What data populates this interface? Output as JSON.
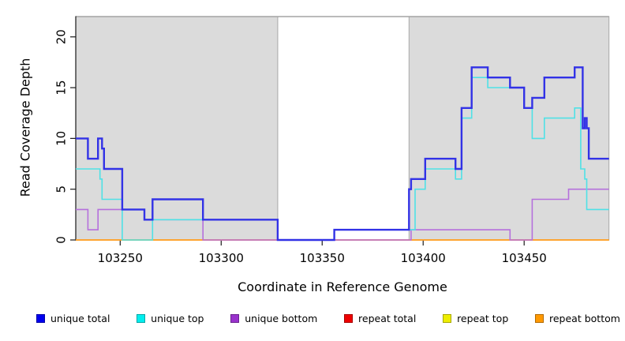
{
  "figure": {
    "xlabel": "Coordinate in Reference Genome",
    "ylabel": "Read Coverage Depth"
  },
  "chart_data": {
    "type": "line",
    "subtype": "step-after",
    "title": "",
    "xlabel": "Coordinate in Reference Genome",
    "ylabel": "Read Coverage Depth",
    "xlim": [
      103228,
      103492
    ],
    "ylim": [
      0,
      22
    ],
    "x_ticks": [
      103250,
      103300,
      103350,
      103400,
      103450
    ],
    "y_ticks": [
      0,
      5,
      10,
      15,
      20
    ],
    "grid": false,
    "legend_position": "bottom",
    "shaded_color": "#dbdbdb",
    "shaded_border_color": "#a8a8a8",
    "background_shaded_regions": [
      [
        103228,
        103328
      ],
      [
        103393,
        103492
      ]
    ],
    "white_gap_region": [
      103328,
      103393
    ],
    "draw_order": [
      "repeat total",
      "repeat top",
      "repeat bottom",
      "unique bottom",
      "unique top",
      "unique total"
    ],
    "series": [
      {
        "name": "unique total",
        "legend_color": "#0000ee",
        "line_color": "#3232e6",
        "line_width": 2.4,
        "steps": [
          [
            103228,
            10
          ],
          [
            103234,
            8
          ],
          [
            103239,
            10
          ],
          [
            103241,
            9
          ],
          [
            103242,
            7
          ],
          [
            103251,
            3
          ],
          [
            103262,
            2
          ],
          [
            103266,
            4
          ],
          [
            103291,
            2
          ],
          [
            103328,
            0
          ],
          [
            103356,
            1
          ],
          [
            103393,
            5
          ],
          [
            103394,
            6
          ],
          [
            103401,
            8
          ],
          [
            103416,
            7
          ],
          [
            103419,
            13
          ],
          [
            103424,
            17
          ],
          [
            103432,
            16
          ],
          [
            103443,
            15
          ],
          [
            103450,
            13
          ],
          [
            103454,
            14
          ],
          [
            103460,
            16
          ],
          [
            103475,
            17
          ],
          [
            103479,
            11
          ],
          [
            103480,
            12
          ],
          [
            103481,
            11
          ],
          [
            103482,
            8
          ]
        ]
      },
      {
        "name": "unique top",
        "legend_color": "#00eeee",
        "line_color": "#4fe1e6",
        "line_width": 1.6,
        "steps": [
          [
            103228,
            7
          ],
          [
            103240,
            6
          ],
          [
            103241,
            4
          ],
          [
            103251,
            0
          ],
          [
            103266,
            2
          ],
          [
            103328,
            0
          ],
          [
            103356,
            1
          ],
          [
            103396,
            5
          ],
          [
            103401,
            7
          ],
          [
            103416,
            6
          ],
          [
            103419,
            12
          ],
          [
            103424,
            16
          ],
          [
            103432,
            15
          ],
          [
            103450,
            13
          ],
          [
            103454,
            10
          ],
          [
            103460,
            12
          ],
          [
            103475,
            13
          ],
          [
            103478,
            7
          ],
          [
            103480,
            6
          ],
          [
            103481,
            3
          ]
        ]
      },
      {
        "name": "unique bottom",
        "legend_color": "#9932cc",
        "line_color": "#b570dc",
        "line_width": 1.6,
        "steps": [
          [
            103228,
            3
          ],
          [
            103234,
            1
          ],
          [
            103239,
            3
          ],
          [
            103262,
            2
          ],
          [
            103291,
            0
          ],
          [
            103394,
            1
          ],
          [
            103443,
            0
          ],
          [
            103454,
            4
          ],
          [
            103472,
            5
          ]
        ]
      },
      {
        "name": "repeat total",
        "legend_color": "#ee0000",
        "line_color": "#dd3333",
        "line_width": 1.2,
        "steps": [
          [
            103228,
            0
          ]
        ]
      },
      {
        "name": "repeat top",
        "legend_color": "#eeee00",
        "line_color": "#eeee33",
        "line_width": 1.2,
        "steps": [
          [
            103228,
            0
          ]
        ]
      },
      {
        "name": "repeat bottom",
        "legend_color": "#ff9900",
        "line_color": "#ffa025",
        "line_width": 1.8,
        "steps": [
          [
            103228,
            0
          ]
        ]
      }
    ]
  }
}
